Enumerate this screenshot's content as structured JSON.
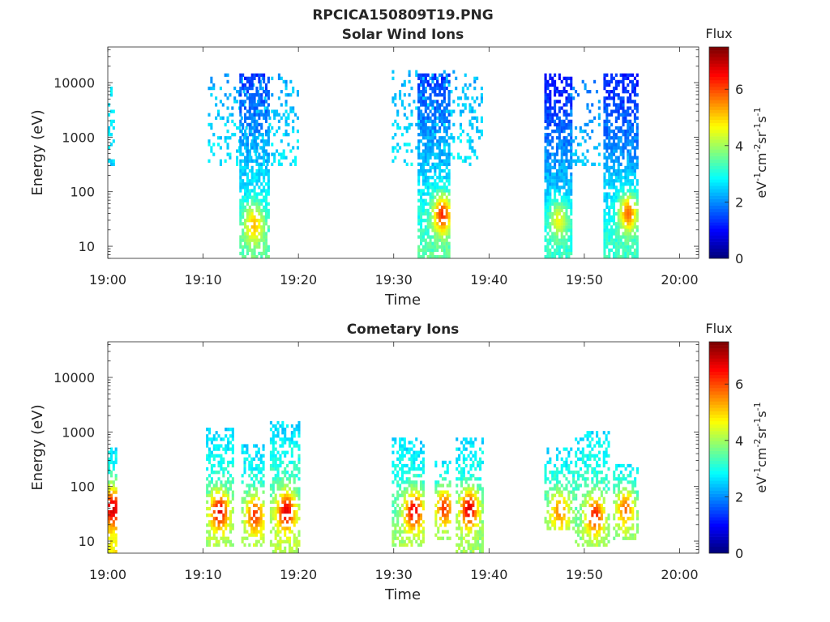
{
  "figure": {
    "title": "RPCICA150809T19.PNG"
  },
  "colorbar": {
    "label_html_parts": [
      "eV",
      "-1",
      "cm",
      "-2",
      "sr",
      "-1",
      "s",
      "-1"
    ],
    "title": "Flux",
    "ticks": [
      0,
      2,
      4,
      6
    ],
    "range": [
      0,
      7.5
    ],
    "colormap": "jet"
  },
  "chart_data": [
    {
      "type": "heatmap",
      "title": "Solar Wind Ions",
      "xlabel": "Time",
      "ylabel": "Energy (eV)",
      "x_tick_labels": [
        "19:00",
        "19:10",
        "19:20",
        "19:30",
        "19:40",
        "19:50",
        "20:00"
      ],
      "x_tick_minutes": [
        0,
        10,
        20,
        30,
        40,
        50,
        60
      ],
      "xlim_minutes": [
        0,
        62
      ],
      "y_scale": "log",
      "y_tick_labels": [
        "10",
        "100",
        "1000",
        "10000"
      ],
      "y_tick_values": [
        10,
        100,
        1000,
        10000
      ],
      "ylim": [
        6,
        45000
      ],
      "clusters": [
        {
          "t0": 0.0,
          "t1": 0.7,
          "e_low": 300,
          "e_high": 9000,
          "density": 0.35,
          "flux_hi": 2.8,
          "flux_lo": 2.5,
          "core_t": 0.3,
          "core_e": 0,
          "core_flux": 0
        },
        {
          "t0": 10.5,
          "t1": 20.0,
          "e_low": 300,
          "e_high": 14000,
          "density": 0.25,
          "flux_hi": 2.2,
          "flux_lo": 2.7,
          "core_t": 0,
          "core_e": 0,
          "core_flux": 0
        },
        {
          "t0": 13.8,
          "t1": 16.8,
          "e_low": 6,
          "e_high": 15000,
          "density": 0.75,
          "flux_hi": 1.3,
          "flux_lo": 3.5,
          "core_t": 15.2,
          "core_e": 25,
          "core_flux": 5.2
        },
        {
          "t0": 29.8,
          "t1": 39.2,
          "e_low": 300,
          "e_high": 18000,
          "density": 0.22,
          "flux_hi": 2.2,
          "flux_lo": 2.7,
          "core_t": 0,
          "core_e": 0,
          "core_flux": 0
        },
        {
          "t0": 32.5,
          "t1": 35.8,
          "e_low": 6,
          "e_high": 15000,
          "density": 0.75,
          "flux_hi": 1.3,
          "flux_lo": 3.5,
          "core_t": 35.0,
          "core_e": 38,
          "core_flux": 6.3
        },
        {
          "t0": 45.8,
          "t1": 48.5,
          "e_low": 6,
          "e_high": 14000,
          "density": 0.8,
          "flux_hi": 1.0,
          "flux_lo": 3.2,
          "core_t": 47.2,
          "core_e": 30,
          "core_flux": 4.6
        },
        {
          "t0": 48.5,
          "t1": 51.5,
          "e_low": 300,
          "e_high": 12000,
          "density": 0.18,
          "flux_hi": 1.8,
          "flux_lo": 2.5,
          "core_t": 0,
          "core_e": 0,
          "core_flux": 0
        },
        {
          "t0": 52.0,
          "t1": 55.5,
          "e_low": 6,
          "e_high": 14000,
          "density": 0.8,
          "flux_hi": 1.1,
          "flux_lo": 3.3,
          "core_t": 54.5,
          "core_e": 40,
          "core_flux": 5.8
        }
      ]
    },
    {
      "type": "heatmap",
      "title": "Cometary Ions",
      "xlabel": "Time",
      "ylabel": "Energy (eV)",
      "x_tick_labels": [
        "19:00",
        "19:10",
        "19:20",
        "19:30",
        "19:40",
        "19:50",
        "20:00"
      ],
      "x_tick_minutes": [
        0,
        10,
        20,
        30,
        40,
        50,
        60
      ],
      "xlim_minutes": [
        0,
        62
      ],
      "y_scale": "log",
      "y_tick_labels": [
        "10",
        "100",
        "1000",
        "10000"
      ],
      "y_tick_values": [
        10,
        100,
        1000,
        10000
      ],
      "ylim": [
        6,
        45000
      ],
      "clusters": [
        {
          "t0": 0.0,
          "t1": 0.8,
          "e_low": 6,
          "e_high": 500,
          "density": 0.7,
          "flux_hi": 2.6,
          "flux_lo": 4.8,
          "core_t": 0.4,
          "core_e": 40,
          "core_flux": 7.0
        },
        {
          "t0": 10.3,
          "t1": 13.0,
          "e_low": 8,
          "e_high": 1200,
          "density": 0.6,
          "flux_hi": 2.5,
          "flux_lo": 4.0,
          "core_t": 11.6,
          "core_e": 35,
          "core_flux": 6.8
        },
        {
          "t0": 14.0,
          "t1": 16.3,
          "e_low": 8,
          "e_high": 600,
          "density": 0.6,
          "flux_hi": 2.5,
          "flux_lo": 4.0,
          "core_t": 15.3,
          "core_e": 30,
          "core_flux": 6.2
        },
        {
          "t0": 17.0,
          "t1": 20.0,
          "e_low": 6,
          "e_high": 1500,
          "density": 0.6,
          "flux_hi": 2.5,
          "flux_lo": 4.2,
          "core_t": 18.6,
          "core_e": 35,
          "core_flux": 6.8
        },
        {
          "t0": 29.8,
          "t1": 33.2,
          "e_low": 8,
          "e_high": 800,
          "density": 0.6,
          "flux_hi": 2.5,
          "flux_lo": 4.0,
          "core_t": 32.0,
          "core_e": 35,
          "core_flux": 6.8
        },
        {
          "t0": 34.3,
          "t1": 36.0,
          "e_low": 10,
          "e_high": 300,
          "density": 0.55,
          "flux_hi": 2.7,
          "flux_lo": 3.8,
          "core_t": 35.2,
          "core_e": 40,
          "core_flux": 6.2
        },
        {
          "t0": 36.5,
          "t1": 39.3,
          "e_low": 6,
          "e_high": 800,
          "density": 0.6,
          "flux_hi": 2.5,
          "flux_lo": 4.0,
          "core_t": 37.8,
          "core_e": 38,
          "core_flux": 6.9
        },
        {
          "t0": 45.8,
          "t1": 48.8,
          "e_low": 15,
          "e_high": 500,
          "density": 0.55,
          "flux_hi": 2.6,
          "flux_lo": 3.9,
          "core_t": 47.3,
          "core_e": 35,
          "core_flux": 5.6
        },
        {
          "t0": 49.0,
          "t1": 52.5,
          "e_low": 8,
          "e_high": 1000,
          "density": 0.55,
          "flux_hi": 2.6,
          "flux_lo": 3.9,
          "core_t": 51.0,
          "core_e": 30,
          "core_flux": 6.4
        },
        {
          "t0": 53.0,
          "t1": 55.5,
          "e_low": 10,
          "e_high": 250,
          "density": 0.55,
          "flux_hi": 2.7,
          "flux_lo": 3.9,
          "core_t": 54.2,
          "core_e": 40,
          "core_flux": 5.8
        },
        {
          "t0": 34.9,
          "t1": 35.1,
          "e_low": 7000,
          "e_high": 7400,
          "density": 1.0,
          "flux_hi": 1.6,
          "flux_lo": 1.6,
          "core_t": 0,
          "core_e": 0,
          "core_flux": 0
        }
      ]
    }
  ]
}
